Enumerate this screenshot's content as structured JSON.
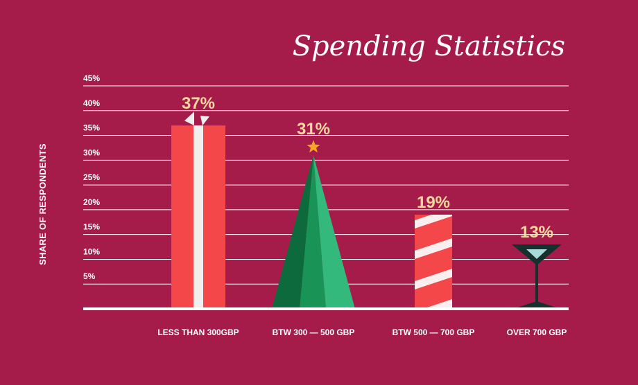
{
  "chart_data": {
    "type": "bar",
    "title": "Spending Statistics",
    "ylabel": "SHARE OF RESPONDENTS",
    "xlabel": "",
    "ylim": [
      0,
      45
    ],
    "yticks": [
      "5%",
      "10%",
      "15%",
      "20%",
      "25%",
      "30%",
      "35%",
      "40%",
      "45%"
    ],
    "grid": true,
    "categories": [
      "LESS THAN 300GBP",
      "BTW 300 — 500 GBP",
      "BTW 500 — 700 GBP",
      "OVER 700 GBP"
    ],
    "values": [
      37,
      31,
      19,
      13
    ],
    "value_labels": [
      "37%",
      "31%",
      "19%",
      "13%"
    ],
    "bar_styles": [
      "gift-box",
      "christmas-tree",
      "candy-cane",
      "martini-glass"
    ],
    "colors": {
      "background": "#a51c4b",
      "gift": "#f4474a",
      "ribbon": "#f1efee",
      "tree_dark": "#0c6a3d",
      "tree_mid": "#1a9456",
      "tree_light": "#34b97c",
      "star": "#f5a623",
      "cane_red": "#f4474a",
      "cane_white": "#fbeeee",
      "glass": "#16302e",
      "drink": "#a9dcd8",
      "value_label": "#f7d9a0"
    }
  }
}
